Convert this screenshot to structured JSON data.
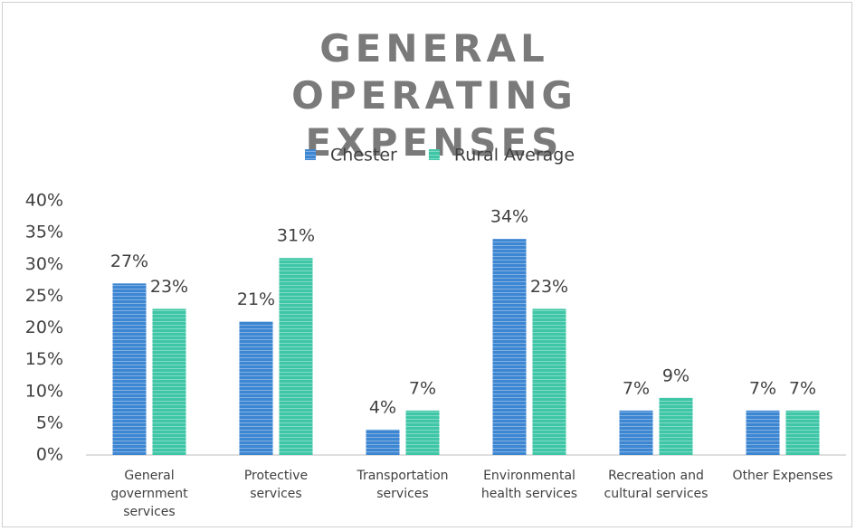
{
  "chart_data": {
    "type": "bar",
    "title": "GENERAL OPERATING EXPENSES",
    "categories": [
      "General government services",
      "Protective services",
      "Transportation services",
      "Environmental health services",
      "Recreation and cultural services",
      "Other Expenses"
    ],
    "series": [
      {
        "name": "Chester",
        "color": "#3d86d2",
        "values": [
          27,
          21,
          4,
          34,
          7,
          7
        ],
        "value_labels": [
          "27%",
          "21%",
          "4%",
          "34%",
          "7%",
          "7%"
        ]
      },
      {
        "name": "Rural Average",
        "color": "#3ec6a6",
        "values": [
          23,
          31,
          7,
          23,
          9,
          7
        ],
        "value_labels": [
          "23%",
          "31%",
          "7%",
          "23%",
          "9%",
          "7%"
        ]
      }
    ],
    "ylim": [
      0,
      40
    ],
    "yticks": [
      {
        "value": 0,
        "label": "0%"
      },
      {
        "value": 5,
        "label": "5%"
      },
      {
        "value": 10,
        "label": "10%"
      },
      {
        "value": 15,
        "label": "15%"
      },
      {
        "value": 20,
        "label": "20%"
      },
      {
        "value": 25,
        "label": "25%"
      },
      {
        "value": 30,
        "label": "30%"
      },
      {
        "value": 35,
        "label": "35%"
      },
      {
        "value": 40,
        "label": "40%"
      }
    ],
    "legend": "top",
    "grid": false
  }
}
